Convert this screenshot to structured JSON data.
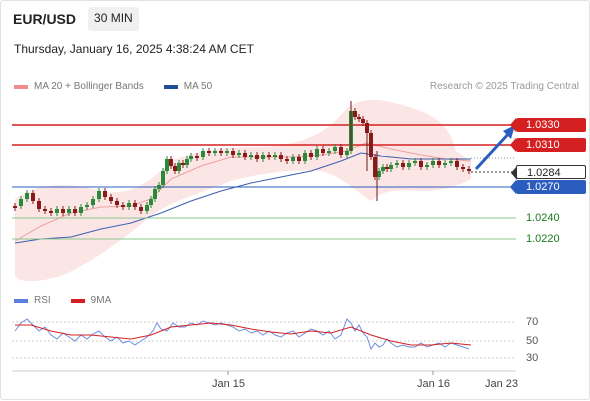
{
  "header": {
    "symbol": "EUR/USD",
    "timeframe": "30 MIN"
  },
  "datetime": "Thursday, January 16, 2025 4:38:24 AM CET",
  "legend": {
    "items": [
      {
        "label": "MA 20 + Bollinger Bands",
        "color": "#f28c8c"
      },
      {
        "label": "MA 50",
        "color": "#1f4f9c"
      }
    ],
    "credit": "Research © 2025 Trading Central"
  },
  "levels": {
    "resistance": [
      "1.0330",
      "1.0310"
    ],
    "current": "1.0284",
    "pivot": "1.0270",
    "supports": [
      "1.0240",
      "1.0220"
    ]
  },
  "rsi_legend": {
    "items": [
      {
        "label": "RSI",
        "color": "#5b7fdc"
      },
      {
        "label": "9MA",
        "color": "#d42020"
      }
    ]
  },
  "rsi_axis": [
    "70",
    "50",
    "30"
  ],
  "xaxis": [
    "Jan 15",
    "Jan 16",
    "Jan 23"
  ],
  "colors": {
    "resistance": "#d42020",
    "pivot": "#2a5dbd",
    "support": "#5aa85a",
    "up_candle": "#2a8a3a",
    "down_candle": "#a02020"
  }
}
